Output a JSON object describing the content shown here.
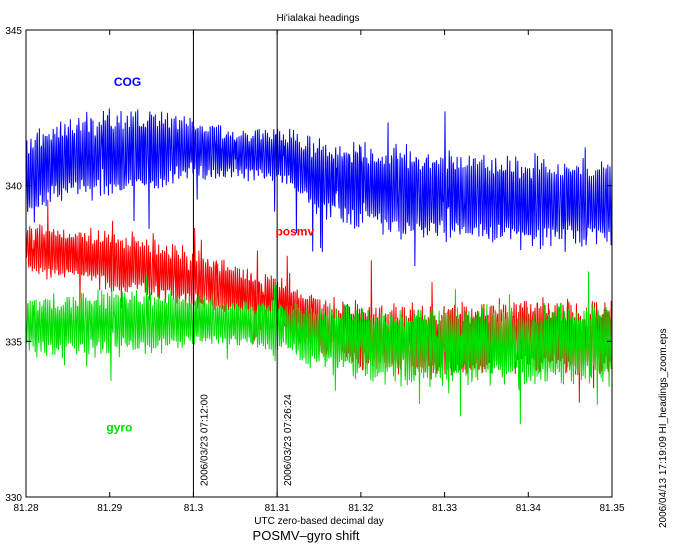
{
  "chart_data": {
    "type": "line",
    "title": "Hi'ialakai headings",
    "xlabel": "UTC zero-based decimal day",
    "ylabel": "",
    "xlim": [
      81.28,
      81.35
    ],
    "ylim": [
      330,
      345
    ],
    "xticks": [
      "81.28",
      "81.29",
      "81.3",
      "81.31",
      "81.32",
      "81.33",
      "81.34",
      "81.35"
    ],
    "yticks": [
      "330",
      "335",
      "340",
      "345"
    ],
    "grid": false,
    "series": [
      {
        "name": "COG",
        "color": "#0000ff",
        "x": [
          81.28,
          81.285,
          81.29,
          81.295,
          81.3,
          81.305,
          81.31,
          81.315,
          81.32,
          81.325,
          81.33,
          81.335,
          81.34,
          81.345,
          81.35
        ],
        "y": [
          340.3,
          340.9,
          341.0,
          341.1,
          341.2,
          341.0,
          341.0,
          340.2,
          340.0,
          339.8,
          339.7,
          339.6,
          339.4,
          339.5,
          339.3
        ],
        "spread": [
          1.4,
          1.4,
          1.5,
          1.4,
          1.0,
          0.8,
          0.9,
          1.3,
          1.4,
          1.5,
          1.5,
          1.5,
          1.5,
          1.4,
          1.4
        ]
      },
      {
        "name": "posmv",
        "color": "#ff0000",
        "x": [
          81.28,
          81.285,
          81.29,
          81.295,
          81.3,
          81.305,
          81.31,
          81.315,
          81.32,
          81.325,
          81.33,
          81.335,
          81.34,
          81.345,
          81.35
        ],
        "y": [
          338.0,
          337.8,
          337.6,
          337.3,
          337.0,
          336.6,
          336.3,
          335.5,
          335.2,
          335.0,
          335.0,
          335.1,
          335.2,
          335.1,
          335.2
        ],
        "spread": [
          0.9,
          0.9,
          1.0,
          1.0,
          1.0,
          0.9,
          0.8,
          1.0,
          1.1,
          1.2,
          1.2,
          1.2,
          1.2,
          1.2,
          1.2
        ]
      },
      {
        "name": "gyro",
        "color": "#00e000",
        "x": [
          81.28,
          81.285,
          81.29,
          81.295,
          81.3,
          81.305,
          81.31,
          81.315,
          81.32,
          81.325,
          81.33,
          81.335,
          81.34,
          81.345,
          81.35
        ],
        "y": [
          335.5,
          335.5,
          335.6,
          335.6,
          335.7,
          335.6,
          335.5,
          335.1,
          335.0,
          334.8,
          334.9,
          334.9,
          334.9,
          334.9,
          334.9
        ],
        "spread": [
          1.0,
          1.0,
          1.1,
          1.0,
          0.9,
          0.8,
          0.8,
          1.1,
          1.2,
          1.3,
          1.3,
          1.3,
          1.3,
          1.3,
          1.3
        ]
      }
    ],
    "vertical_markers": [
      {
        "x": 81.3,
        "label": "2006/03/23 07:12:00"
      },
      {
        "x": 81.31,
        "label": "2006/03/23 07:26:24"
      }
    ],
    "series_labels": [
      {
        "text": "COG",
        "x": 81.2905,
        "y": 343.2,
        "color": "#0000ff"
      },
      {
        "text": "posmv",
        "x": 81.3098,
        "y": 338.4,
        "color": "#ff0000"
      },
      {
        "text": "gyro",
        "x": 81.2896,
        "y": 332.1,
        "color": "#00e000"
      }
    ]
  },
  "caption": "POSMV–gyro shift",
  "side_note": "2006/04/13 17:19:09   HI_headings_zoom.eps"
}
